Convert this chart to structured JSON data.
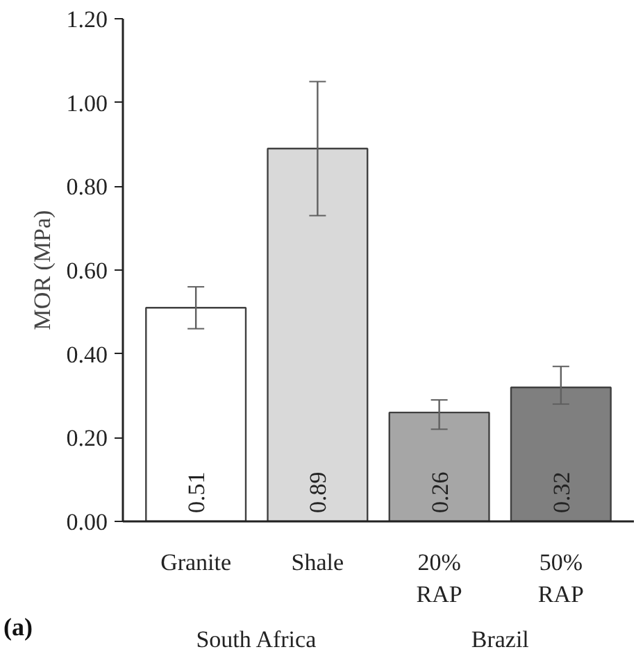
{
  "chart_data": {
    "type": "bar",
    "ylabel": "MOR (MPa)",
    "categories": [
      "Granite",
      "Shale",
      "20%\nRAP",
      "50%\nRAP"
    ],
    "values": [
      0.51,
      0.89,
      0.26,
      0.32
    ],
    "colors": [
      "#ffffff",
      "#d9d9d9",
      "#a6a6a6",
      "#7f7f7f"
    ],
    "errors": [
      [
        0.46,
        0.56
      ],
      [
        0.73,
        1.05
      ],
      [
        0.22,
        0.29
      ],
      [
        0.28,
        0.37
      ]
    ],
    "data_labels": true,
    "ylim": [
      0,
      1.2
    ],
    "yticks": [
      {
        "value": 0,
        "label": "0.00"
      },
      {
        "value": 0.2,
        "label": "0.20"
      },
      {
        "value": 0.4,
        "label": "0.40"
      },
      {
        "value": 0.6,
        "label": "0.60"
      },
      {
        "value": 0.8,
        "label": "0.80"
      },
      {
        "value": 1.0,
        "label": "1.00"
      },
      {
        "value": 1.2,
        "label": "1.20"
      }
    ],
    "grid": false,
    "annotations": [
      "South Africa",
      "Brazil",
      "(a)"
    ]
  }
}
